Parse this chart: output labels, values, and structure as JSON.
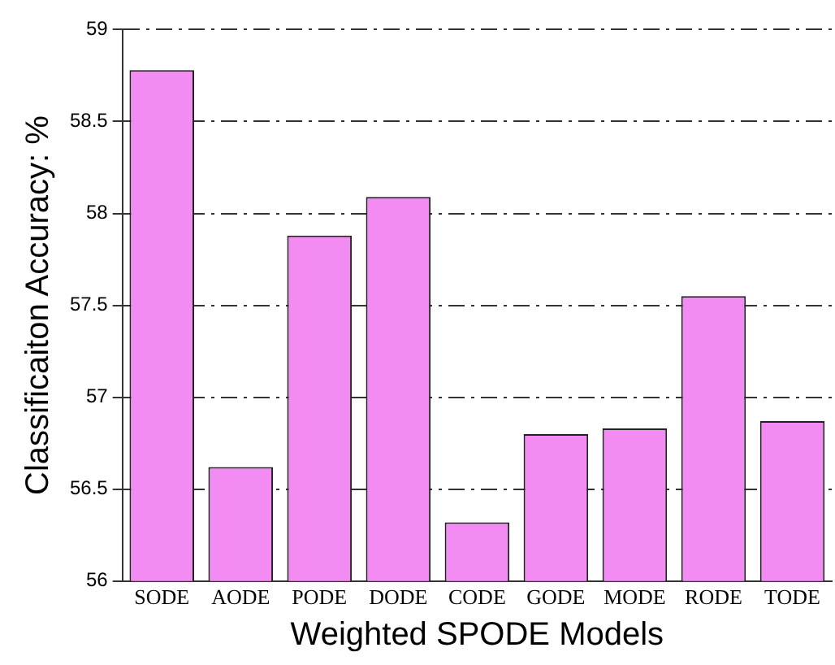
{
  "chart_data": {
    "type": "bar",
    "xlabel": "Weighted SPODE Models",
    "ylabel": "Classificaiton Accuracy: %",
    "categories": [
      "SODE",
      "AODE",
      "PODE",
      "DODE",
      "CODE",
      "GODE",
      "MODE",
      "RODE",
      "TODE"
    ],
    "values": [
      58.78,
      56.62,
      57.88,
      58.09,
      56.32,
      56.8,
      56.83,
      57.55,
      56.87
    ],
    "color": "#f28cf2",
    "ylim": [
      56,
      59
    ],
    "yticks": [
      56,
      56.5,
      57,
      57.5,
      58,
      58.5,
      59
    ],
    "grid": "y",
    "line_style": "dashed"
  }
}
